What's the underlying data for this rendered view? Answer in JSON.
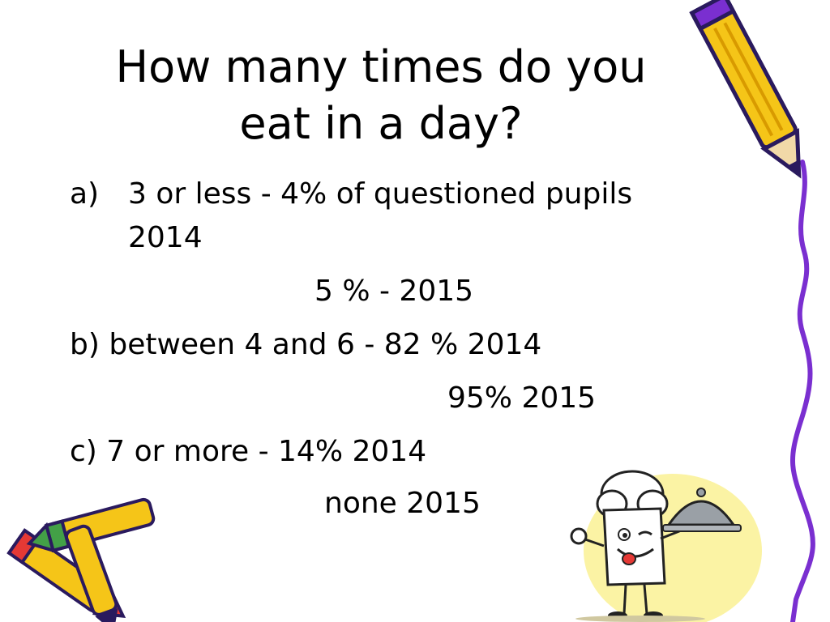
{
  "slide": {
    "title_line1": "How many times do you",
    "title_line2": "eat in a day?",
    "items": [
      {
        "marker": "a)",
        "line1": "3 or less - 4% of questioned pupils",
        "line2": "2014",
        "line3": "5 % -  2015"
      },
      {
        "line1": "b) between 4 and 6 - 82 % 2014",
        "line2": "95%  2015"
      },
      {
        "line1": "c) 7 or more - 14%  2014",
        "line2": "none 2015"
      }
    ]
  },
  "decorations": {
    "top_right": "pencil-icon",
    "bottom_left": "crayons-icon",
    "bottom_right": "chef-with-cloche-icon",
    "right_edge": "purple-wavy-line",
    "colors": {
      "crayon_yellow": "#f5c518",
      "crayon_tip": "#2a1a5e",
      "wavy_line": "#7a2fd0",
      "sun_glow": "#fbf3a4",
      "cloche": "#9aa0a6"
    }
  }
}
